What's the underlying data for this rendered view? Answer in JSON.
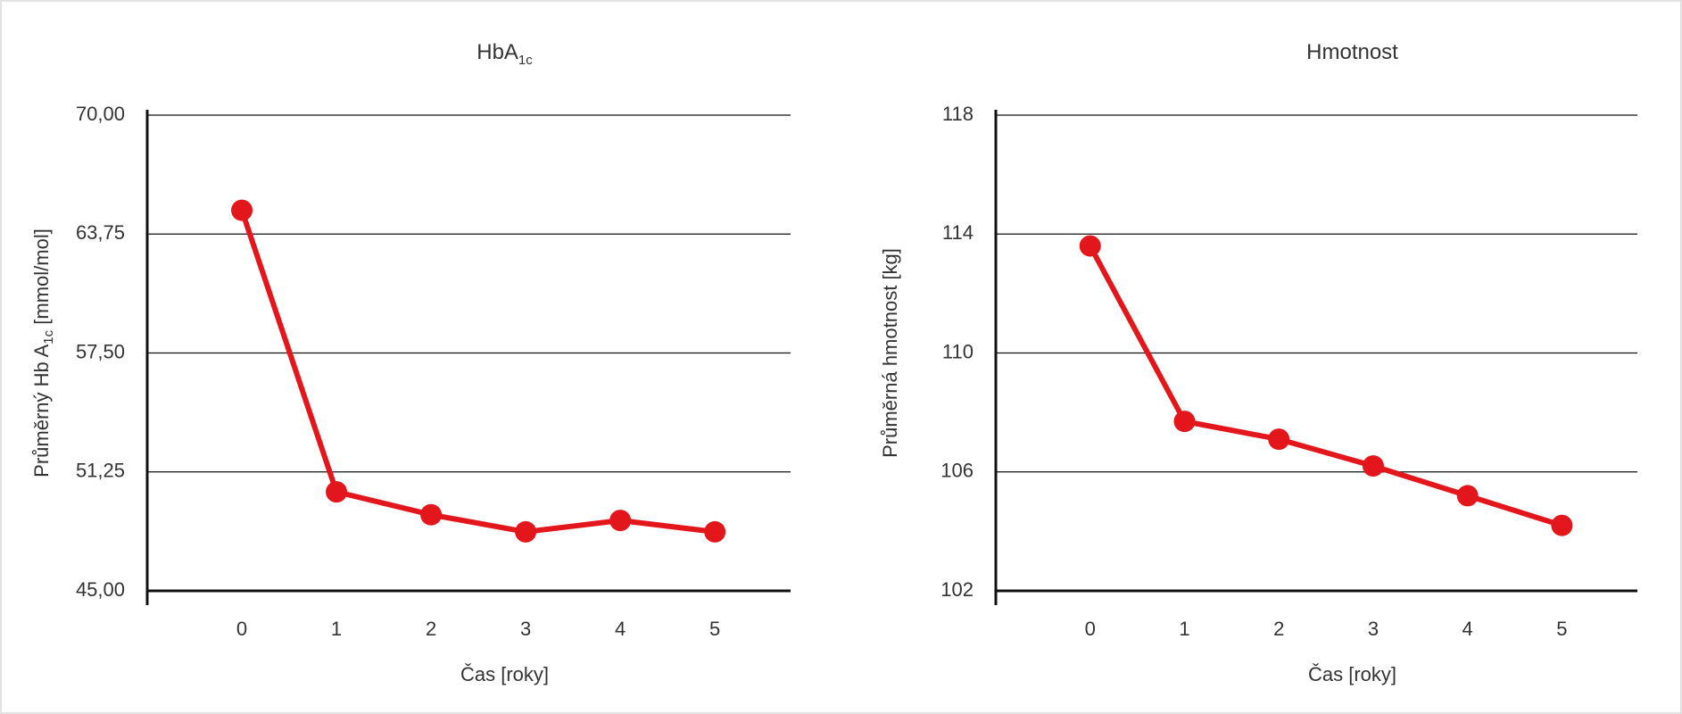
{
  "chart_data": [
    {
      "type": "line",
      "title": "HbA",
      "title_subscript": "1c",
      "ylabel": [
        "Průměrný Hb A",
        "1c",
        " [mmol/mol]"
      ],
      "xlabel": "Čas [roky]",
      "x": [
        0,
        1,
        2,
        3,
        4,
        5
      ],
      "series": [
        {
          "name": "HbA1c",
          "color": "#e3161b",
          "values": [
            65.0,
            50.2,
            49.0,
            48.1,
            48.7,
            48.1
          ]
        }
      ],
      "xlim": [
        -1,
        5.8
      ],
      "xticks": [
        0,
        1,
        2,
        3,
        4,
        5
      ],
      "ylim": [
        45,
        70
      ],
      "yticks": [
        {
          "value": 45,
          "label": "45,00"
        },
        {
          "value": 51.25,
          "label": "51,25"
        },
        {
          "value": 57.5,
          "label": "57,50"
        },
        {
          "value": 63.75,
          "label": "63,75"
        },
        {
          "value": 70,
          "label": "70,00"
        }
      ],
      "grid": true
    },
    {
      "type": "line",
      "title": "Hmotnost",
      "ylabel": [
        "Průměrná hmotnost  [kg]"
      ],
      "xlabel": "Čas [roky]",
      "x": [
        0,
        1,
        2,
        3,
        4,
        5
      ],
      "series": [
        {
          "name": "Hmotnost",
          "color": "#e3161b",
          "values": [
            113.6,
            107.7,
            107.1,
            106.2,
            105.2,
            104.2
          ]
        }
      ],
      "xlim": [
        -1,
        5.8
      ],
      "xticks": [
        0,
        1,
        2,
        3,
        4,
        5
      ],
      "ylim": [
        102,
        118
      ],
      "yticks": [
        102,
        106,
        110,
        114,
        118
      ],
      "grid": true
    }
  ]
}
